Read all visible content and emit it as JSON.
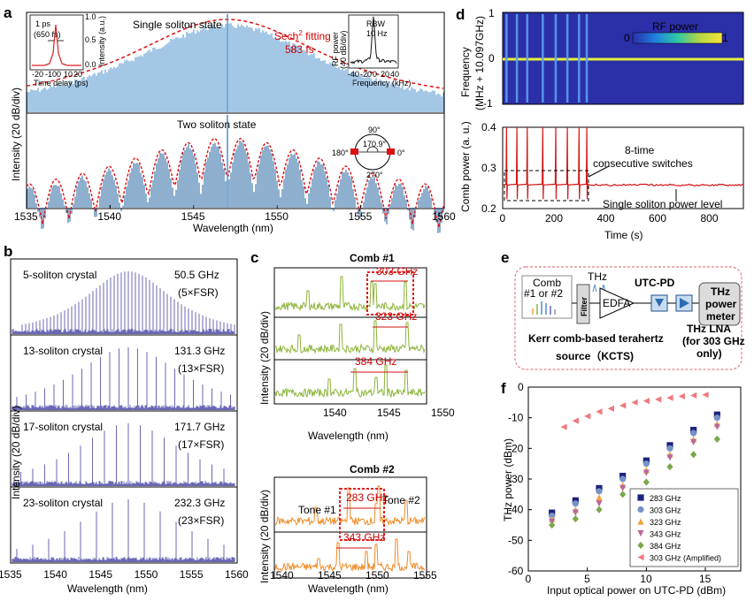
{
  "panel_labels": {
    "a": "a",
    "b": "b",
    "c": "c",
    "d": "d",
    "e": "e",
    "f": "f"
  },
  "colors": {
    "blue_spectrum": "#4a8fcc",
    "dark_blue_spectrum": "#1f5f9e",
    "red_fit": "#dd1111",
    "purple_spectrum": "#6b67b5",
    "green_spectrum": "#8db43a",
    "orange_spectrum": "#f08a24",
    "red_power": "#d41414",
    "heatmap_bg": "#2b2fa8",
    "heatmap_line": "#e6f03c",
    "pink_box": "#e87f85"
  },
  "panel_a": {
    "single_title": "Single soliton state",
    "sech_fit": "Sech",
    "sech_sup": "2",
    "sech_fit_rest": " fitting",
    "sech_width": "583 fs",
    "two_title": "Two soliton state",
    "ylabel": "Intensity (20 dB/div)",
    "xlabel": "Wavelength (nm)",
    "xticks": [
      "1535",
      "1540",
      "1545",
      "1550",
      "1555",
      "1560"
    ],
    "inset_ac": {
      "ann1": "1 ps",
      "ann2": "(650 fs)",
      "xlabel": "Time delay (ps)",
      "ylabel": "Intensity (a.u.)",
      "xticks": [
        "-20",
        "-10",
        "0",
        "10",
        "20"
      ],
      "yticks": [
        "0.0",
        "0.5",
        "1.0"
      ]
    },
    "inset_rf": {
      "ylabel1": "RF power",
      "ylabel2": "(40 dB/div)",
      "rbw1": "RBW",
      "rbw2": "10 Hz",
      "xlabel": "Frequency (kHz)",
      "xticks": [
        "-40",
        "-20",
        "0",
        "20",
        "40"
      ]
    },
    "polar": {
      "deg90": "90°",
      "deg180": "180°",
      "deg0": "0°",
      "deg270": "270°",
      "angle": "170.9°"
    }
  },
  "panel_b": {
    "ylabel": "Intensity (20 dB/div)",
    "xlabel": "Wavelength (nm)",
    "xticks": [
      "1535",
      "1540",
      "1545",
      "1550",
      "1555",
      "1560"
    ],
    "rows": [
      {
        "name": "5-soliton crystal",
        "freq": "50.5 GHz",
        "fsr": "(5×FSR)"
      },
      {
        "name": "13-soliton crystal",
        "freq": "131.3 GHz",
        "fsr": "(13×FSR)"
      },
      {
        "name": "17-soliton crystal",
        "freq": "171.7 GHz",
        "fsr": "(17×FSR)"
      },
      {
        "name": "23-soliton crystal",
        "freq": "232.3 GHz",
        "fsr": "(23×FSR)"
      }
    ]
  },
  "panel_c": {
    "comb1_title": "Comb #1",
    "comb2_title": "Comb #2",
    "ylabel": "Intensity (20 dB/div)",
    "xlabel": "Wavelength (nm)",
    "xticks1": [
      "1540",
      "1545",
      "1550"
    ],
    "xticks2": [
      "1540",
      "1545",
      "1550",
      "1555"
    ],
    "comb1_spacings": [
      "303 GHz",
      "323 GHz",
      "384 GHz"
    ],
    "comb2_spacings": [
      "283 GHz",
      "343 GHz"
    ],
    "tone1": "Tone #1",
    "tone2": "Tone #2"
  },
  "panel_d": {
    "heat_ylabel1": "Frequency",
    "heat_ylabel2": "(MHz + 10.097GHz)",
    "heat_yticks": [
      "1",
      "0",
      "-1"
    ],
    "colorbar_label": "RF power",
    "colorbar_min": "0",
    "colorbar_max": "1",
    "ylabel": "Comb power (a. u.)",
    "xlabel": "Time (s)",
    "yticks": [
      "0.2",
      "0.3",
      "0.4"
    ],
    "xticks": [
      "0",
      "200",
      "400",
      "600",
      "800"
    ],
    "ann_switch1": "8-time",
    "ann_switch2": "consecutive switches",
    "ann_level": "Single soliton power level"
  },
  "panel_e": {
    "comb_label1": "Comb",
    "comb_label2": "#1 or #2",
    "thz": "THz",
    "filter": "Filter",
    "edfa": "EDFA",
    "utc": "UTC-PD",
    "meter1": "THz",
    "meter2": "power",
    "meter3": "meter",
    "lna1": "THz LNA",
    "lna2": "(for 303 GHz",
    "lna3": "only)",
    "kcts1": "Kerr comb-based terahertz",
    "kcts2": "source（KCTS)"
  },
  "chart_data": [
    {
      "panel": "f",
      "type": "scatter",
      "xlabel": "Input optical power on UTC-PD (dBm)",
      "ylabel": "THz power (dBm)",
      "xlim": [
        0,
        18
      ],
      "ylim": [
        -60,
        0
      ],
      "xticks": [
        0,
        5,
        10,
        15
      ],
      "yticks": [
        0,
        -10,
        -20,
        -30,
        -40,
        -50,
        -60
      ],
      "legend_position": "bottom-right",
      "series": [
        {
          "name": "283 GHz",
          "marker": "square",
          "color": "#1a237e",
          "x": [
            2,
            4,
            6,
            8,
            10,
            12,
            14,
            16
          ],
          "y": [
            -41,
            -37,
            -33,
            -29,
            -24,
            -19,
            -14,
            -9
          ]
        },
        {
          "name": "303 GHz",
          "marker": "circle",
          "color": "#7892c9",
          "x": [
            2,
            4,
            6,
            8,
            10,
            12,
            14,
            16
          ],
          "y": [
            -42,
            -38,
            -34,
            -30,
            -25,
            -20,
            -15,
            -10
          ]
        },
        {
          "name": "323 GHz",
          "marker": "triangle-up",
          "color": "#f2a33b",
          "x": [
            2,
            4,
            6,
            8,
            10,
            12,
            14,
            16
          ],
          "y": [
            -43,
            -40,
            -36,
            -32,
            -27,
            -22,
            -17,
            -12
          ]
        },
        {
          "name": "343 GHz",
          "marker": "triangle-down",
          "color": "#b6699e",
          "x": [
            2,
            4,
            6,
            8,
            10,
            12,
            14,
            16
          ],
          "y": [
            -44,
            -41,
            -38,
            -33,
            -28,
            -23,
            -18,
            -13
          ]
        },
        {
          "name": "384 GHz",
          "marker": "diamond",
          "color": "#7aa84a",
          "x": [
            2,
            4,
            6,
            8,
            10,
            12,
            14,
            16
          ],
          "y": [
            -45,
            -43,
            -40,
            -35,
            -31,
            -26,
            -22,
            -17
          ]
        },
        {
          "name": "303 GHz (Amplified)",
          "marker": "triangle-left",
          "color": "#f0787c",
          "x": [
            3,
            4,
            5,
            6,
            7,
            8,
            9,
            10,
            11,
            12,
            13,
            14,
            15
          ],
          "y": [
            -13,
            -11,
            -9.5,
            -8,
            -7,
            -6,
            -5,
            -4.5,
            -4,
            -3.5,
            -3,
            -2.7,
            -2.5
          ]
        }
      ]
    },
    {
      "panel": "d",
      "type": "line",
      "xlabel": "Time (s)",
      "ylabel": "Comb power (a. u.)",
      "xlim": [
        0,
        930
      ],
      "ylim": [
        0.2,
        0.4
      ],
      "series": [
        {
          "name": "",
          "steady_level": 0.258,
          "switch_times": [
            15,
            55,
            95,
            155,
            205,
            250,
            295,
            325
          ],
          "peak": 0.4,
          "low": 0.22
        }
      ]
    }
  ]
}
